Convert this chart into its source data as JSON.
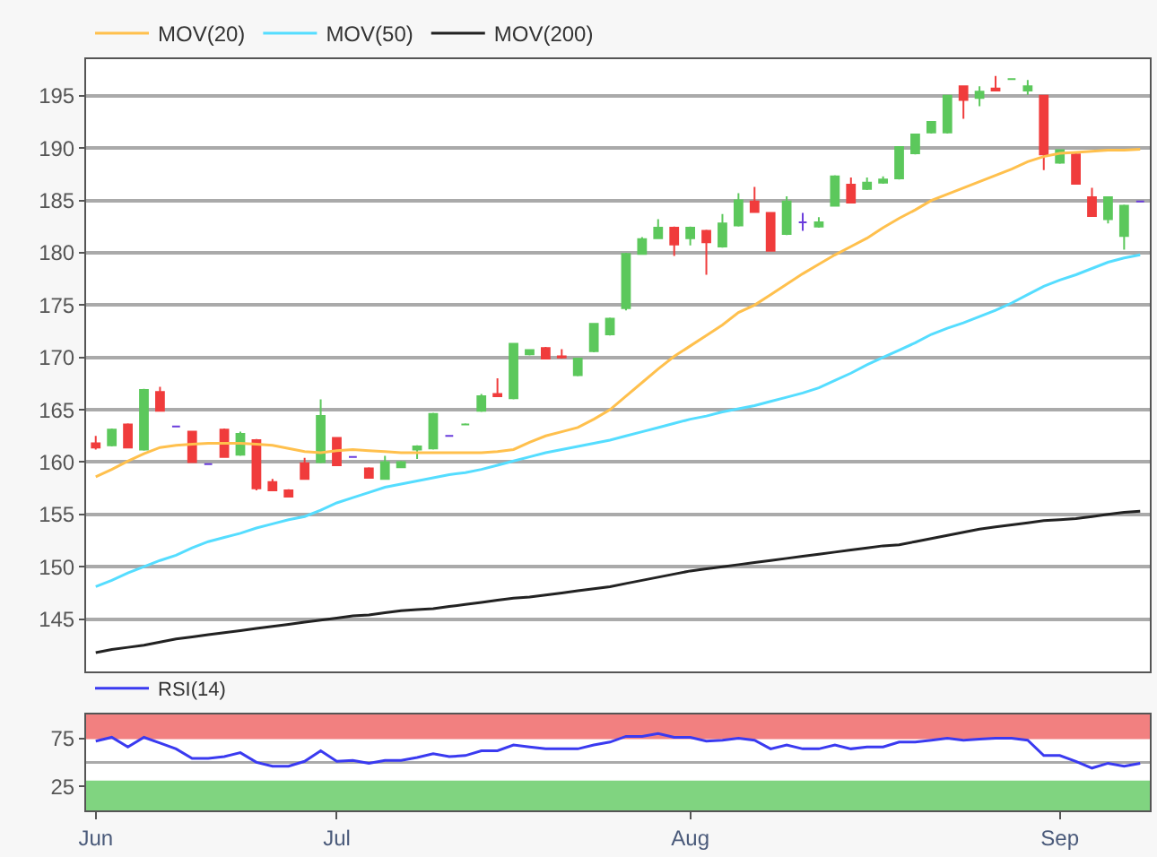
{
  "chart_data": [
    {
      "type": "candlestick",
      "categories": [
        null,
        null,
        null,
        null,
        null,
        null,
        null,
        null,
        null,
        null,
        null,
        null,
        null,
        null,
        null,
        null,
        null,
        null,
        null,
        null,
        null,
        null,
        null,
        null,
        null,
        null,
        null,
        null,
        null,
        null,
        null,
        null,
        null,
        null,
        null,
        null,
        null,
        null,
        null,
        null,
        null,
        null,
        null,
        null,
        null,
        null,
        null,
        null,
        null,
        null,
        null,
        null,
        null,
        null,
        null,
        null,
        null,
        null,
        null,
        null,
        null,
        null,
        null,
        null,
        null,
        null
      ],
      "ohlc": [
        [
          161.8,
          162.5,
          161.2,
          161.4
        ],
        [
          161.6,
          163.2,
          161.5,
          163.1
        ],
        [
          163.6,
          163.7,
          161.3,
          161.4
        ],
        [
          161.2,
          167.0,
          161.1,
          166.9
        ],
        [
          166.7,
          167.2,
          164.9,
          164.9
        ],
        [
          163.4,
          163.4,
          163.4,
          163.4
        ],
        [
          162.9,
          163.0,
          160.0,
          160.0
        ],
        [
          159.8,
          159.8,
          159.8,
          159.8
        ],
        [
          163.1,
          163.2,
          160.5,
          160.5
        ],
        [
          160.7,
          162.9,
          160.6,
          162.7
        ],
        [
          162.1,
          162.2,
          157.3,
          157.5
        ],
        [
          158.1,
          158.4,
          157.3,
          157.3
        ],
        [
          157.3,
          157.4,
          156.7,
          156.7
        ],
        [
          159.9,
          160.4,
          158.4,
          158.4
        ],
        [
          160.0,
          166.0,
          159.9,
          164.4
        ],
        [
          162.3,
          162.4,
          159.7,
          159.7
        ],
        [
          160.5,
          160.5,
          160.5,
          160.5
        ],
        [
          159.4,
          159.5,
          158.5,
          158.5
        ],
        [
          158.4,
          160.6,
          158.3,
          160.0
        ],
        [
          159.5,
          160.1,
          159.5,
          160.0
        ],
        [
          161.2,
          161.6,
          160.3,
          161.5
        ],
        [
          161.3,
          164.7,
          161.2,
          164.6
        ],
        [
          162.5,
          162.5,
          162.5,
          162.5
        ],
        [
          163.6,
          163.7,
          163.6,
          163.6
        ],
        [
          164.9,
          166.5,
          164.8,
          166.3
        ],
        [
          166.5,
          168.0,
          166.3,
          166.3
        ],
        [
          166.1,
          171.4,
          166.0,
          171.3
        ],
        [
          170.3,
          170.8,
          170.2,
          170.7
        ],
        [
          170.9,
          171.0,
          169.9,
          169.9
        ],
        [
          170.1,
          170.8,
          169.9,
          170.0
        ],
        [
          168.3,
          169.9,
          168.2,
          169.9
        ],
        [
          170.6,
          173.3,
          170.5,
          173.2
        ],
        [
          172.2,
          173.8,
          172.1,
          173.7
        ],
        [
          174.7,
          180.0,
          174.5,
          179.9
        ],
        [
          179.9,
          181.5,
          179.8,
          181.3
        ],
        [
          181.4,
          183.2,
          181.3,
          182.4
        ],
        [
          182.4,
          182.5,
          179.7,
          180.8
        ],
        [
          181.4,
          182.5,
          180.7,
          182.4
        ],
        [
          182.1,
          182.2,
          177.9,
          181.0
        ],
        [
          180.6,
          183.7,
          180.5,
          182.8
        ],
        [
          182.6,
          185.7,
          182.5,
          185.0
        ],
        [
          184.9,
          186.3,
          183.9,
          183.9
        ],
        [
          183.8,
          183.9,
          180.2,
          180.2
        ],
        [
          181.8,
          185.4,
          181.7,
          184.9
        ],
        [
          182.9,
          183.8,
          182.1,
          182.9
        ],
        [
          182.5,
          183.4,
          182.4,
          182.9
        ],
        [
          184.5,
          187.4,
          184.4,
          187.3
        ],
        [
          186.5,
          187.2,
          184.8,
          184.8
        ],
        [
          186.1,
          187.2,
          186.0,
          186.7
        ],
        [
          186.7,
          187.3,
          186.6,
          187.0
        ],
        [
          187.1,
          190.2,
          187.0,
          190.1
        ],
        [
          189.5,
          191.4,
          189.4,
          191.3
        ],
        [
          191.5,
          192.6,
          191.4,
          192.5
        ],
        [
          191.5,
          195.1,
          191.4,
          195.0
        ],
        [
          195.9,
          196.0,
          192.8,
          194.6
        ],
        [
          194.8,
          195.9,
          194.0,
          195.4
        ],
        [
          195.7,
          196.9,
          195.5,
          195.5
        ],
        [
          196.6,
          196.6,
          196.6,
          196.6
        ],
        [
          195.5,
          196.5,
          195.1,
          195.9
        ],
        [
          195.0,
          195.1,
          187.9,
          189.4
        ],
        [
          188.6,
          189.9,
          188.5,
          189.8
        ],
        [
          189.4,
          189.5,
          186.6,
          186.6
        ],
        [
          185.3,
          186.2,
          183.5,
          183.5
        ],
        [
          183.2,
          185.3,
          182.8,
          185.3
        ],
        [
          181.6,
          184.6,
          180.3,
          184.5
        ],
        [
          184.9,
          184.9,
          184.9,
          184.9
        ]
      ],
      "colors": [
        "#f03c3c",
        "#5cc85c",
        "#f03c3c",
        "#5cc85c",
        "#f03c3c",
        "#6a3cdc",
        "#f03c3c",
        "#6a3cdc",
        "#f03c3c",
        "#5cc85c",
        "#f03c3c",
        "#f03c3c",
        "#f03c3c",
        "#f03c3c",
        "#5cc85c",
        "#f03c3c",
        "#6a3cdc",
        "#f03c3c",
        "#5cc85c",
        "#5cc85c",
        "#5cc85c",
        "#5cc85c",
        "#6a3cdc",
        "#5cc85c",
        "#5cc85c",
        "#f03c3c",
        "#5cc85c",
        "#5cc85c",
        "#f03c3c",
        "#f03c3c",
        "#5cc85c",
        "#5cc85c",
        "#5cc85c",
        "#5cc85c",
        "#5cc85c",
        "#5cc85c",
        "#f03c3c",
        "#5cc85c",
        "#f03c3c",
        "#5cc85c",
        "#5cc85c",
        "#f03c3c",
        "#f03c3c",
        "#5cc85c",
        "#6a3cdc",
        "#5cc85c",
        "#5cc85c",
        "#f03c3c",
        "#5cc85c",
        "#5cc85c",
        "#5cc85c",
        "#5cc85c",
        "#5cc85c",
        "#5cc85c",
        "#f03c3c",
        "#5cc85c",
        "#f03c3c",
        "#5cc85c",
        "#5cc85c",
        "#f03c3c",
        "#5cc85c",
        "#f03c3c",
        "#f03c3c",
        "#5cc85c",
        "#5cc85c",
        "#6a3cdc"
      ],
      "series": [
        {
          "type": "line",
          "name": "MOV(20)",
          "color": "#ffc04d",
          "values": [
            158.6,
            159.3,
            160.1,
            160.8,
            161.4,
            161.6,
            161.7,
            161.8,
            161.8,
            161.8,
            161.7,
            161.6,
            161.3,
            161.0,
            160.9,
            161.1,
            161.2,
            161.1,
            161.0,
            160.9,
            160.9,
            160.9,
            160.9,
            160.9,
            160.9,
            161.0,
            161.2,
            161.9,
            162.5,
            162.9,
            163.3,
            164.1,
            165.0,
            166.3,
            167.6,
            168.9,
            170.1,
            171.1,
            172.1,
            173.1,
            174.3,
            175.0,
            176.0,
            177.0,
            178.0,
            178.9,
            179.8,
            180.6,
            181.4,
            182.4,
            183.3,
            184.1,
            185.0,
            185.6,
            186.2,
            186.8,
            187.4,
            188.0,
            188.7,
            189.2,
            189.5,
            189.6,
            189.7,
            189.8,
            189.8,
            189.9
          ]
        },
        {
          "type": "line",
          "name": "MOV(50)",
          "color": "#55ddff",
          "values": [
            148.1,
            148.7,
            149.4,
            150.0,
            150.6,
            151.1,
            151.8,
            152.4,
            152.8,
            153.2,
            153.7,
            154.1,
            154.5,
            154.8,
            155.4,
            156.1,
            156.6,
            157.1,
            157.6,
            157.9,
            158.2,
            158.5,
            158.8,
            159.0,
            159.3,
            159.7,
            160.1,
            160.5,
            160.9,
            161.2,
            161.5,
            161.8,
            162.1,
            162.5,
            162.9,
            163.3,
            163.7,
            164.1,
            164.4,
            164.8,
            165.1,
            165.4,
            165.8,
            166.2,
            166.6,
            167.1,
            167.8,
            168.5,
            169.3,
            170.0,
            170.7,
            171.4,
            172.2,
            172.8,
            173.3,
            173.9,
            174.5,
            175.2,
            176.0,
            176.8,
            177.4,
            177.9,
            178.5,
            179.1,
            179.5,
            179.8
          ]
        },
        {
          "type": "line",
          "name": "MOV(200)",
          "color": "#222222",
          "values": [
            141.8,
            142.1,
            142.3,
            142.5,
            142.8,
            143.1,
            143.3,
            143.5,
            143.7,
            143.9,
            144.1,
            144.3,
            144.5,
            144.7,
            144.9,
            145.1,
            145.3,
            145.4,
            145.6,
            145.8,
            145.9,
            146.0,
            146.2,
            146.4,
            146.6,
            146.8,
            147.0,
            147.1,
            147.3,
            147.5,
            147.7,
            147.9,
            148.1,
            148.4,
            148.7,
            149.0,
            149.3,
            149.6,
            149.8,
            150.0,
            150.2,
            150.4,
            150.6,
            150.8,
            151.0,
            151.2,
            151.4,
            151.6,
            151.8,
            152.0,
            152.1,
            152.4,
            152.7,
            153.0,
            153.3,
            153.6,
            153.8,
            154.0,
            154.2,
            154.4,
            154.5,
            154.6,
            154.8,
            155.0,
            155.2,
            155.3
          ]
        }
      ],
      "ylim": [
        140,
        198.5
      ],
      "yticks": [
        145,
        150,
        155,
        160,
        165,
        170,
        175,
        180,
        185,
        190,
        195
      ],
      "grid": "y",
      "legend": "top left",
      "tick_labels": "y"
    },
    {
      "type": "line",
      "categories": [
        "Jun",
        null,
        null,
        null,
        null,
        null,
        null,
        null,
        null,
        null,
        null,
        null,
        null,
        null,
        null,
        "Jul",
        null,
        null,
        null,
        null,
        null,
        null,
        null,
        null,
        null,
        null,
        null,
        null,
        null,
        null,
        null,
        null,
        null,
        null,
        null,
        null,
        null,
        "Aug",
        null,
        null,
        null,
        null,
        null,
        null,
        null,
        null,
        null,
        null,
        null,
        null,
        null,
        null,
        null,
        null,
        null,
        null,
        null,
        null,
        null,
        null,
        "Sep",
        null,
        null,
        null,
        null,
        null
      ],
      "series": [
        {
          "name": "RSI(14)",
          "color": "#3a3af0",
          "values": [
            72,
            76,
            66,
            76,
            70,
            64,
            54,
            54,
            56,
            60,
            50,
            46,
            46,
            51,
            62,
            51,
            52,
            49,
            52,
            52,
            55,
            59,
            56,
            57,
            62,
            62,
            68,
            66,
            64,
            64,
            64,
            68,
            71,
            77,
            77,
            80,
            76,
            76,
            72,
            73,
            75,
            73,
            64,
            68,
            64,
            64,
            68,
            64,
            66,
            66,
            71,
            71,
            73,
            75,
            73,
            74,
            75,
            75,
            73,
            57,
            57,
            51,
            44,
            49,
            46,
            49
          ]
        }
      ],
      "ylim": [
        0,
        100
      ],
      "yticks": [
        25,
        75
      ],
      "bands": [
        {
          "axis": "y",
          "from": 75,
          "to": 100,
          "color": "#f28080"
        },
        {
          "axis": "y",
          "from": 0,
          "to": 30,
          "color": "#80d480"
        }
      ],
      "ref_lines": [
        {
          "axis": "y",
          "value": 50,
          "color": "#aaaaaa"
        }
      ],
      "legend": "top left"
    }
  ]
}
